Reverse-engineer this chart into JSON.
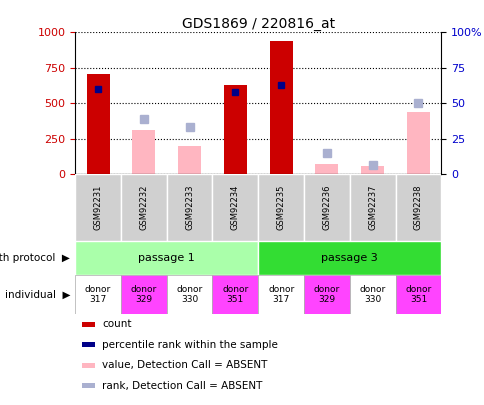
{
  "title": "GDS1869 / 220816_at",
  "samples": [
    "GSM92231",
    "GSM92232",
    "GSM92233",
    "GSM92234",
    "GSM92235",
    "GSM92236",
    "GSM92237",
    "GSM92238"
  ],
  "count": [
    710,
    null,
    null,
    630,
    940,
    null,
    null,
    null
  ],
  "value_absent": [
    null,
    310,
    200,
    null,
    null,
    75,
    60,
    440
  ],
  "percentile_rank": [
    60,
    null,
    null,
    58,
    63,
    null,
    null,
    null
  ],
  "rank_absent": [
    null,
    39,
    33,
    null,
    null,
    15,
    6.5,
    50
  ],
  "individual": [
    "donor\n317",
    "donor\n329",
    "donor\n330",
    "donor\n351",
    "donor\n317",
    "donor\n329",
    "donor\n330",
    "donor\n351"
  ],
  "individual_colors": [
    "#ffffff",
    "#ff44ff",
    "#ffffff",
    "#ff44ff",
    "#ffffff",
    "#ff44ff",
    "#ffffff",
    "#ff44ff"
  ],
  "passage1_color": "#aaffaa",
  "passage3_color": "#33dd33",
  "count_color": "#cc0000",
  "percentile_color": "#000088",
  "value_absent_color": "#ffb6c1",
  "rank_absent_color": "#aab0d0",
  "left_axis_color": "#cc0000",
  "right_axis_color": "#0000cc",
  "ylim": [
    0,
    1000
  ],
  "right_ylim": [
    0,
    100
  ],
  "yticks_left": [
    0,
    250,
    500,
    750,
    1000
  ],
  "yticks_right": [
    0,
    25,
    50,
    75,
    100
  ],
  "bar_width": 0.5,
  "legend_items": [
    {
      "label": "count",
      "color": "#cc0000"
    },
    {
      "label": "percentile rank within the sample",
      "color": "#000088"
    },
    {
      "label": "value, Detection Call = ABSENT",
      "color": "#ffb6c1"
    },
    {
      "label": "rank, Detection Call = ABSENT",
      "color": "#aab0d0"
    }
  ]
}
